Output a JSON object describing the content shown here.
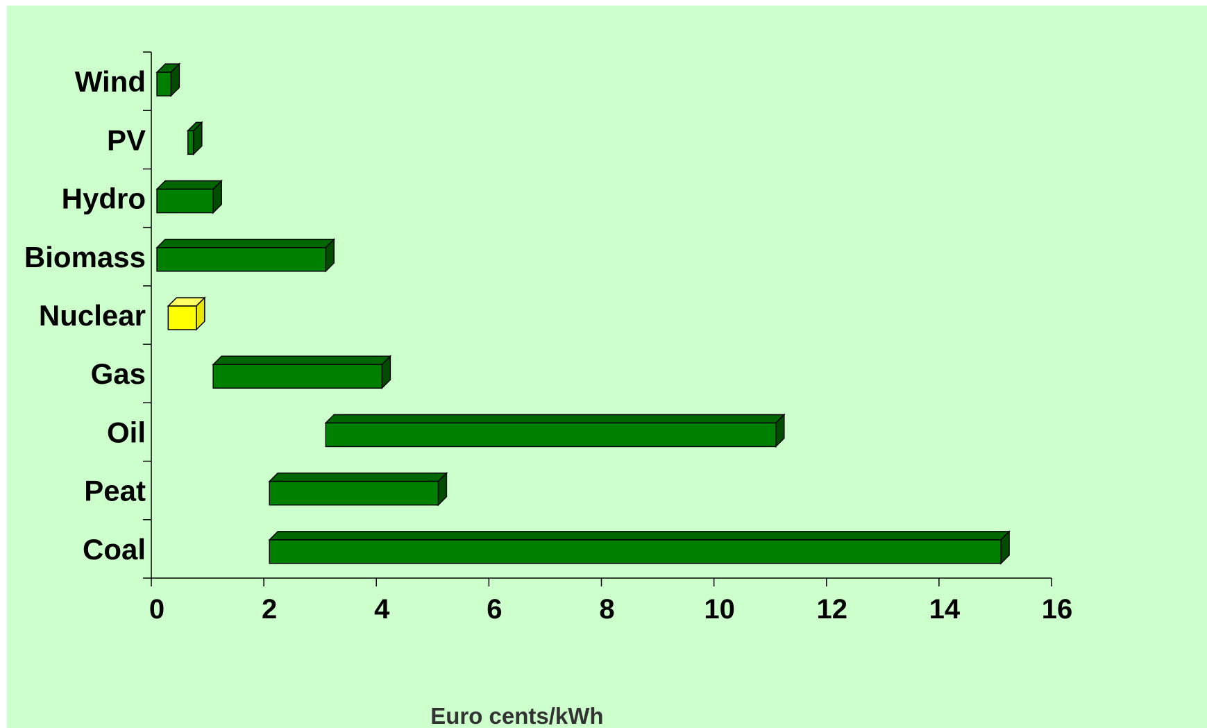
{
  "chart_data": {
    "type": "bar",
    "orientation": "horizontal-range",
    "categories": [
      "Wind",
      "PV",
      "Hydro",
      "Biomass",
      "Nuclear",
      "Gas",
      "Oil",
      "Peat",
      "Coal"
    ],
    "ranges": [
      {
        "category": "Wind",
        "low": 0.1,
        "high": 0.35,
        "highlight": false
      },
      {
        "category": "PV",
        "low": 0.65,
        "high": 0.75,
        "highlight": false
      },
      {
        "category": "Hydro",
        "low": 0.1,
        "high": 1.1,
        "highlight": false
      },
      {
        "category": "Biomass",
        "low": 0.1,
        "high": 3.1,
        "highlight": false
      },
      {
        "category": "Nuclear",
        "low": 0.3,
        "high": 0.8,
        "highlight": true
      },
      {
        "category": "Gas",
        "low": 1.1,
        "high": 4.1,
        "highlight": false
      },
      {
        "category": "Oil",
        "low": 3.1,
        "high": 11.1,
        "highlight": false
      },
      {
        "category": "Peat",
        "low": 2.1,
        "high": 5.1,
        "highlight": false
      },
      {
        "category": "Coal",
        "low": 2.1,
        "high": 15.1,
        "highlight": false
      }
    ],
    "xlabel": "Euro cents/kWh",
    "ylabel": "",
    "xlim": [
      0,
      16
    ],
    "xticks": [
      "0",
      "2",
      "4",
      "6",
      "8",
      "10",
      "12",
      "14",
      "16"
    ],
    "grid": false,
    "legend": "none",
    "colors": {
      "background": "#ccffcc",
      "bar_front": "#008000",
      "bar_top": "#006600",
      "bar_side": "#004d00",
      "highlight_front": "#ffff00",
      "highlight_top": "#ffff66",
      "highlight_side": "#e6e600",
      "outline": "#000000"
    }
  }
}
